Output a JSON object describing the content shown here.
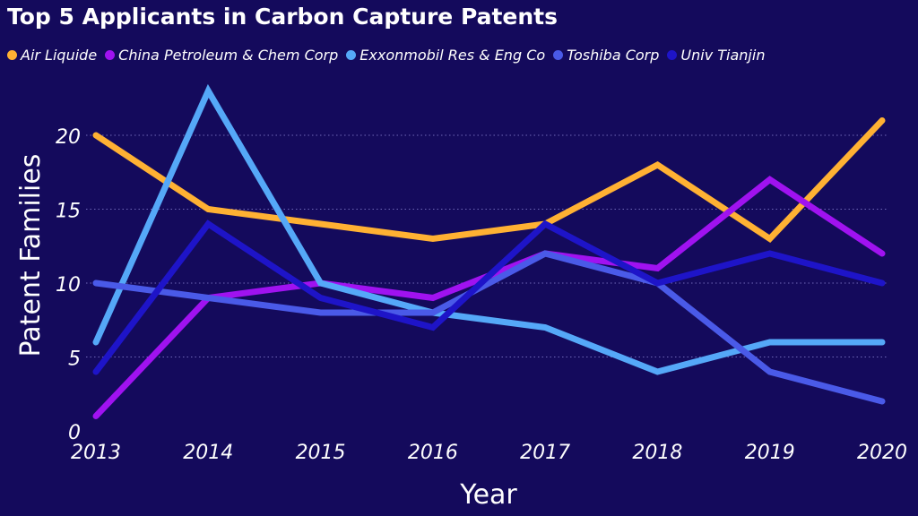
{
  "chart_data": {
    "type": "line",
    "title": "Top 5 Applicants in Carbon Capture Patents",
    "xlabel": "Year",
    "ylabel": "Patent Families",
    "x": [
      "2013",
      "2014",
      "2015",
      "2016",
      "2017",
      "2018",
      "2019",
      "2020"
    ],
    "ylim": [
      0,
      22
    ],
    "yticks": [
      0,
      5,
      10,
      15,
      20
    ],
    "grid": "horizontal dotted",
    "legend_position": "top",
    "series": [
      {
        "name": "Air Liquide",
        "color": "#ffb133",
        "values": [
          20,
          15,
          14,
          13,
          14,
          18,
          13,
          21
        ]
      },
      {
        "name": "China Petroleum & Chem Corp",
        "color": "#a012f0",
        "values": [
          1,
          9,
          10,
          9,
          12,
          11,
          17,
          12
        ]
      },
      {
        "name": "Exxonmobil Res & Eng Co",
        "color": "#55a8f8",
        "values": [
          6,
          23,
          10,
          8,
          7,
          4,
          6,
          6
        ]
      },
      {
        "name": "Toshiba Corp",
        "color": "#4a5ae8",
        "values": [
          10,
          9,
          8,
          8,
          12,
          10,
          4,
          2
        ]
      },
      {
        "name": "Univ Tianjin",
        "color": "#1e14c8",
        "values": [
          4,
          14,
          9,
          7,
          14,
          10,
          12,
          10
        ]
      }
    ]
  }
}
